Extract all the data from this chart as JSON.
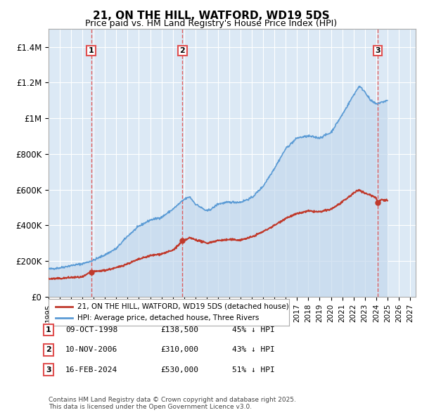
{
  "title": "21, ON THE HILL, WATFORD, WD19 5DS",
  "subtitle": "Price paid vs. HM Land Registry's House Price Index (HPI)",
  "ylabel_ticks": [
    "£0",
    "£200K",
    "£400K",
    "£600K",
    "£800K",
    "£1M",
    "£1.2M",
    "£1.4M"
  ],
  "ylim": [
    0,
    1500000
  ],
  "xlim_start": 1995.0,
  "xlim_end": 2027.5,
  "background_color": "#ffffff",
  "plot_bg_color": "#dce9f5",
  "grid_color": "#ffffff",
  "hpi_color": "#5B9BD5",
  "hpi_fill_color": "#c5d9ed",
  "price_color": "#c0392b",
  "vline_color": "#e05050",
  "future_hatch_color": "#b0c4de",
  "transactions": [
    {
      "label": "1",
      "date": 1998.77,
      "price": 138500,
      "x_label": "09-OCT-1998",
      "price_label": "£138,500",
      "hpi_label": "45% ↓ HPI"
    },
    {
      "label": "2",
      "date": 2006.86,
      "price": 310000,
      "x_label": "10-NOV-2006",
      "price_label": "£310,000",
      "hpi_label": "43% ↓ HPI"
    },
    {
      "label": "3",
      "date": 2024.12,
      "price": 530000,
      "x_label": "16-FEB-2024",
      "price_label": "£530,000",
      "hpi_label": "51% ↓ HPI"
    }
  ],
  "legend_line1": "21, ON THE HILL, WATFORD, WD19 5DS (detached house)",
  "legend_line2": "HPI: Average price, detached house, Three Rivers",
  "footer": "Contains HM Land Registry data © Crown copyright and database right 2025.\nThis data is licensed under the Open Government Licence v3.0.",
  "future_start": 2025.0
}
